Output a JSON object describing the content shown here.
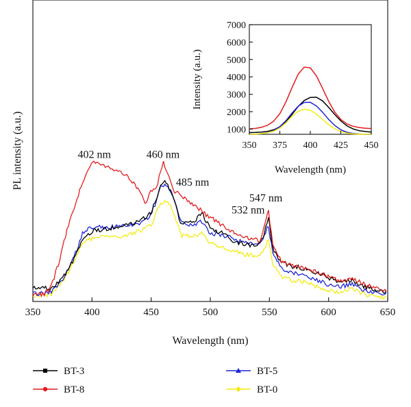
{
  "chart_data": [
    {
      "type": "line",
      "xlabel": "Wavelength (nm)",
      "ylabel": "PL intensity (a.u.)",
      "xlim": [
        350,
        650
      ],
      "ylim": [
        0,
        100
      ],
      "xticks": [
        "350",
        "400",
        "450",
        "500",
        "550",
        "600",
        "650"
      ],
      "yticks": [],
      "legend_position": "bottom",
      "grid": false,
      "annotations": [
        {
          "text": "402 nm",
          "x": 402,
          "y": 72
        },
        {
          "text": "460 nm",
          "x": 460,
          "y": 72
        },
        {
          "text": "485 nm",
          "x": 485,
          "y": 58
        },
        {
          "text": "532 nm",
          "x": 532,
          "y": 44
        },
        {
          "text": "547 nm",
          "x": 547,
          "y": 50
        }
      ],
      "series": [
        {
          "name": "BT-3",
          "color": "#000000",
          "x": [
            350,
            365,
            375,
            385,
            392,
            400,
            410,
            420,
            430,
            440,
            450,
            458,
            462,
            468,
            475,
            485,
            493,
            500,
            510,
            520,
            530,
            540,
            545,
            549,
            553,
            560,
            570,
            580,
            590,
            600,
            610,
            620,
            630,
            640,
            650
          ],
          "y": [
            6,
            6,
            11,
            21,
            31,
            35,
            36,
            37,
            38,
            40,
            44,
            58,
            60,
            54,
            39,
            39,
            44,
            36,
            34,
            30,
            28,
            28,
            32,
            42,
            26,
            19,
            17,
            16,
            14,
            11,
            9,
            10,
            7,
            5,
            4
          ]
        },
        {
          "name": "BT-8",
          "color": "#e31a1c",
          "x": [
            350,
            360,
            365,
            372,
            380,
            390,
            396,
            402,
            410,
            420,
            430,
            440,
            445,
            450,
            455,
            460,
            465,
            470,
            475,
            485,
            495,
            505,
            515,
            525,
            535,
            542,
            545,
            549,
            553,
            560,
            570,
            580,
            590,
            600,
            610,
            620,
            630,
            640,
            650
          ],
          "y": [
            3,
            3,
            6,
            19,
            38,
            56,
            66,
            70,
            68,
            66,
            63,
            55,
            49,
            55,
            58,
            70,
            62,
            55,
            53,
            49,
            44,
            40,
            36,
            33,
            31,
            30,
            35,
            46,
            28,
            20,
            17,
            16,
            14,
            12,
            10,
            11,
            8,
            6,
            5
          ]
        },
        {
          "name": "BT-5",
          "color": "#1f23d6",
          "x": [
            350,
            365,
            375,
            385,
            392,
            400,
            410,
            420,
            430,
            440,
            450,
            458,
            462,
            468,
            475,
            485,
            493,
            500,
            510,
            520,
            530,
            540,
            545,
            549,
            553,
            560,
            570,
            580,
            590,
            600,
            610,
            620,
            630,
            640,
            650
          ],
          "y": [
            3,
            4,
            10,
            22,
            34,
            37,
            37,
            37,
            38,
            39,
            43,
            57,
            59,
            53,
            40,
            38,
            40,
            34,
            33,
            31,
            29,
            29,
            31,
            38,
            23,
            16,
            14,
            13,
            10,
            8,
            7,
            8,
            5,
            4,
            3
          ]
        },
        {
          "name": "BT-0",
          "color": "#f2ec12",
          "x": [
            350,
            365,
            375,
            385,
            392,
            400,
            410,
            420,
            430,
            440,
            450,
            458,
            462,
            468,
            475,
            485,
            493,
            500,
            510,
            520,
            530,
            540,
            545,
            549,
            553,
            560,
            570,
            580,
            590,
            600,
            610,
            620,
            630,
            640,
            650
          ],
          "y": [
            2,
            3,
            9,
            20,
            29,
            31,
            32,
            32,
            33,
            35,
            38,
            49,
            51,
            46,
            33,
            32,
            34,
            29,
            27,
            25,
            23,
            22,
            25,
            31,
            18,
            12,
            10,
            9,
            7,
            5,
            4,
            6,
            3,
            2,
            1
          ]
        }
      ]
    },
    {
      "type": "line",
      "xlabel": "Wavelength (nm)",
      "ylabel": "Intensity (a.u.)",
      "xlim": [
        350,
        450
      ],
      "ylim": [
        700,
        7000
      ],
      "xticks": [
        "350",
        "375",
        "400",
        "425",
        "450"
      ],
      "yticks": [
        "1000",
        "2000",
        "3000",
        "4000",
        "5000",
        "6000",
        "7000"
      ],
      "series": [
        {
          "name": "BT-8",
          "color": "#e31a1c",
          "x": [
            350,
            355,
            360,
            365,
            370,
            375,
            380,
            385,
            390,
            395,
            400,
            405,
            410,
            415,
            420,
            425,
            430,
            435,
            440,
            445,
            450
          ],
          "y": [
            1010,
            1040,
            1100,
            1220,
            1460,
            1880,
            2560,
            3380,
            4150,
            4560,
            4520,
            4060,
            3350,
            2600,
            1980,
            1560,
            1300,
            1160,
            1090,
            1050,
            1030
          ]
        },
        {
          "name": "BT-3",
          "color": "#000000",
          "x": [
            350,
            355,
            360,
            365,
            370,
            375,
            380,
            385,
            390,
            395,
            400,
            405,
            410,
            415,
            420,
            425,
            430,
            435,
            440,
            445,
            450
          ],
          "y": [
            800,
            810,
            830,
            870,
            960,
            1130,
            1420,
            1840,
            2300,
            2640,
            2820,
            2830,
            2620,
            2250,
            1840,
            1470,
            1190,
            1010,
            910,
            860,
            830
          ]
        },
        {
          "name": "BT-5",
          "color": "#1f23d6",
          "x": [
            350,
            355,
            360,
            365,
            370,
            375,
            380,
            385,
            390,
            395,
            400,
            405,
            410,
            415,
            420,
            425,
            430,
            435,
            440,
            445,
            450
          ],
          "y": [
            700,
            710,
            740,
            800,
            920,
            1140,
            1480,
            1920,
            2310,
            2530,
            2540,
            2330,
            1970,
            1560,
            1210,
            960,
            820,
            750,
            720,
            705,
            700
          ]
        },
        {
          "name": "BT-0",
          "color": "#f2ec12",
          "x": [
            350,
            355,
            360,
            365,
            370,
            375,
            380,
            385,
            390,
            395,
            400,
            405,
            410,
            415,
            420,
            425,
            430,
            435,
            440,
            445,
            450
          ],
          "y": [
            700,
            710,
            740,
            790,
            880,
            1060,
            1360,
            1740,
            2020,
            2140,
            2080,
            1860,
            1560,
            1260,
            1020,
            860,
            770,
            725,
            710,
            702,
            700
          ]
        }
      ]
    }
  ],
  "legend": {
    "items": [
      {
        "label": "BT-3",
        "color": "#000000"
      },
      {
        "label": "BT-8",
        "color": "#e31a1c"
      },
      {
        "label": "BT-5",
        "color": "#1f23d6"
      },
      {
        "label": "BT-0",
        "color": "#f2ec12"
      }
    ]
  }
}
